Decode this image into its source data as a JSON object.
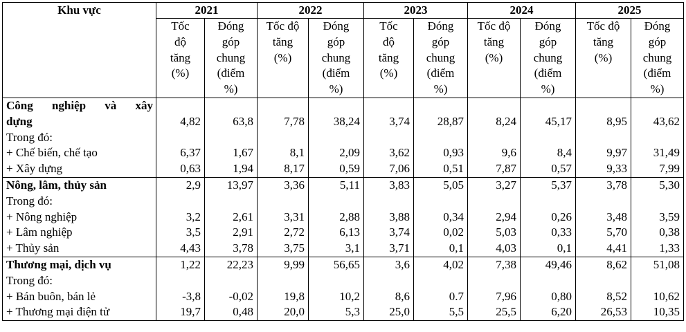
{
  "header": {
    "region_col": "Khu vực",
    "years": [
      "2021",
      "2022",
      "2023",
      "2024",
      "2025"
    ],
    "sub_rate": [
      "Tốc",
      "độ",
      "tăng",
      "(%)"
    ],
    "sub_rate_wide": [
      "Tốc độ",
      "tăng",
      "(%)"
    ],
    "sub_contrib": [
      "Đóng",
      "góp",
      "chung",
      "(điểm",
      "%)"
    ]
  },
  "groups": [
    {
      "title_line1": "Công nghiệp và xây",
      "title_line2": "dựng",
      "values": [
        "4,82",
        "63,8",
        "7,78",
        "38,24",
        "3,74",
        "28,87",
        "8,24",
        "45,17",
        "8,95",
        "43,62"
      ],
      "sub_heading": "Trong đó:",
      "rows": [
        {
          "label": "+ Chế biến, chế tạo",
          "values": [
            "6,37",
            "1,67",
            "8,1",
            "2,09",
            "3,62",
            "0,93",
            "9,6",
            "8,4",
            "9,97",
            "31,49"
          ]
        },
        {
          "label": "+ Xây dựng",
          "values": [
            "0,63",
            "1,94",
            "8,17",
            "0,59",
            "7,06",
            "0,51",
            "7,87",
            "0,57",
            "9,33",
            "7,99"
          ]
        }
      ]
    },
    {
      "title": "Nông, lâm, thủy sản",
      "values": [
        "2,9",
        "13,97",
        "3,36",
        "5,11",
        "3,83",
        "5,05",
        "3,27",
        "5,37",
        "3,78",
        "5,30"
      ],
      "sub_heading": "Trong đó:",
      "rows": [
        {
          "label": "+ Nông nghiệp",
          "values": [
            "3,2",
            "2,61",
            "3,31",
            "2,88",
            "3,88",
            "0,34",
            "2,94",
            "0,26",
            "3,48",
            "3,59"
          ]
        },
        {
          "label": "+ Lâm nghiệp",
          "values": [
            "3,5",
            "2,91",
            "2,72",
            "6,13",
            "3,74",
            "0,02",
            "5,03",
            "0,33",
            "5,70",
            "0,38"
          ]
        },
        {
          "label": "+ Thủy sản",
          "values": [
            "4,43",
            "3,78",
            "3,75",
            "3,1",
            "3,71",
            "0,1",
            "4,03",
            "0,1",
            "4,41",
            "1,33"
          ]
        }
      ]
    },
    {
      "title": "Thương mại, dịch vụ",
      "values": [
        "1,22",
        "22,23",
        "9,99",
        "56,65",
        "3,6",
        "4,02",
        "7,38",
        "49,46",
        "8,62",
        "51,08"
      ],
      "sub_heading": "Trong đó:",
      "rows": [
        {
          "label": "+ Bán buôn, bán lẻ",
          "values": [
            "-3,8",
            "-0,02",
            "19,8",
            "10,2",
            "8,6",
            "0.7",
            "7,96",
            "0,80",
            "8,52",
            "10,62"
          ]
        },
        {
          "label": "+ Thương mại điện tử",
          "values": [
            "19,7",
            "0,48",
            "20,0",
            "5,3",
            "25,0",
            "5,5",
            "25,5",
            "6,20",
            "26,53",
            "10,35"
          ]
        }
      ]
    }
  ]
}
